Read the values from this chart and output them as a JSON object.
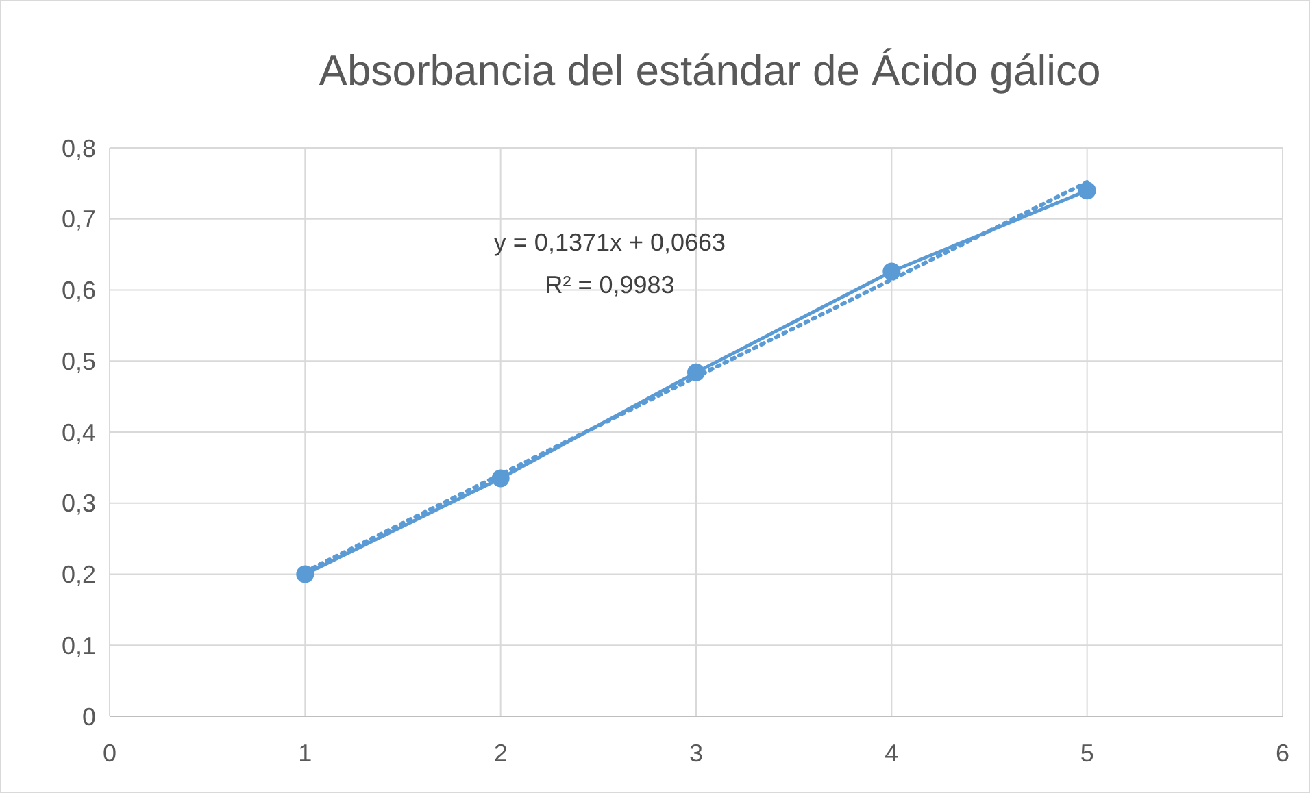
{
  "chart_data": {
    "type": "line",
    "title": "Absorbancia del estándar de Ácido gálico",
    "x": [
      1,
      2,
      3,
      4,
      5
    ],
    "series": [
      {
        "color": "#5b9bd5",
        "values": [
          0.2,
          0.335,
          0.484,
          0.626,
          0.74
        ],
        "marker": "circle",
        "line_style": "solid"
      },
      {
        "color": "#5b9bd5",
        "x": [
          1,
          5
        ],
        "values": [
          0.2034,
          0.7518
        ],
        "marker": "none",
        "line_style": "dotted"
      }
    ],
    "xlim": [
      0,
      6
    ],
    "xticks": [
      0,
      1,
      2,
      3,
      4,
      5,
      6
    ],
    "ylim": [
      0,
      0.8
    ],
    "yticks": [
      0,
      {
        "value": 0.1,
        "label": "0,1"
      },
      {
        "value": 0.2,
        "label": "0,2"
      },
      {
        "value": 0.3,
        "label": "0,3"
      },
      {
        "value": 0.4,
        "label": "0,4"
      },
      {
        "value": 0.5,
        "label": "0,5"
      },
      {
        "value": 0.6,
        "label": "0,6"
      },
      {
        "value": 0.7,
        "label": "0,7"
      },
      {
        "value": 0.8,
        "label": "0,8"
      }
    ],
    "grid": true,
    "annotations": [
      "y = 0,1371x + 0,0663",
      "R² = 0,9983"
    ]
  }
}
